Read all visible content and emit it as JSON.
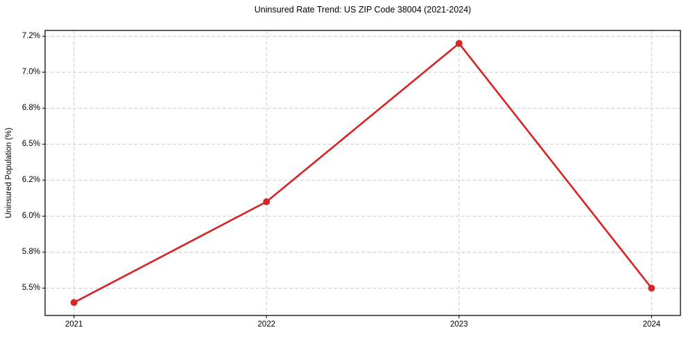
{
  "chart_data": {
    "type": "line",
    "title": "Uninsured Rate Trend: US ZIP Code 38004 (2021-2024)",
    "xlabel": "",
    "ylabel": "Uninsured Population (%)",
    "x": [
      2021,
      2022,
      2023,
      2024
    ],
    "series": [
      {
        "values": [
          5.4,
          6.1,
          7.2,
          5.5
        ],
        "color": "#d62728",
        "marker": "circle",
        "line_width": 2.7,
        "marker_radius": 5
      }
    ],
    "xticks": {
      "values": [
        2021,
        2022,
        2023,
        2024
      ],
      "labels": [
        "2021",
        "2022",
        "2023",
        "2024"
      ]
    },
    "yticks": {
      "values": [
        5.5,
        5.75,
        6.0,
        6.25,
        6.5,
        6.75,
        7.0,
        7.25
      ],
      "labels": [
        "5.5%",
        "5.8%",
        "6.0%",
        "6.2%",
        "6.5%",
        "6.8%",
        "7.0%",
        "7.2%"
      ]
    },
    "xlim": [
      2020.85,
      2024.15
    ],
    "ylim": [
      5.31,
      7.29
    ],
    "grid": true,
    "grid_line_style": "dashed",
    "legend": "none",
    "colors": {
      "line": "#d62728",
      "grid": "#cccccc",
      "spine": "#1a1a1a",
      "text": "#000000",
      "background": "#ffffff"
    }
  }
}
